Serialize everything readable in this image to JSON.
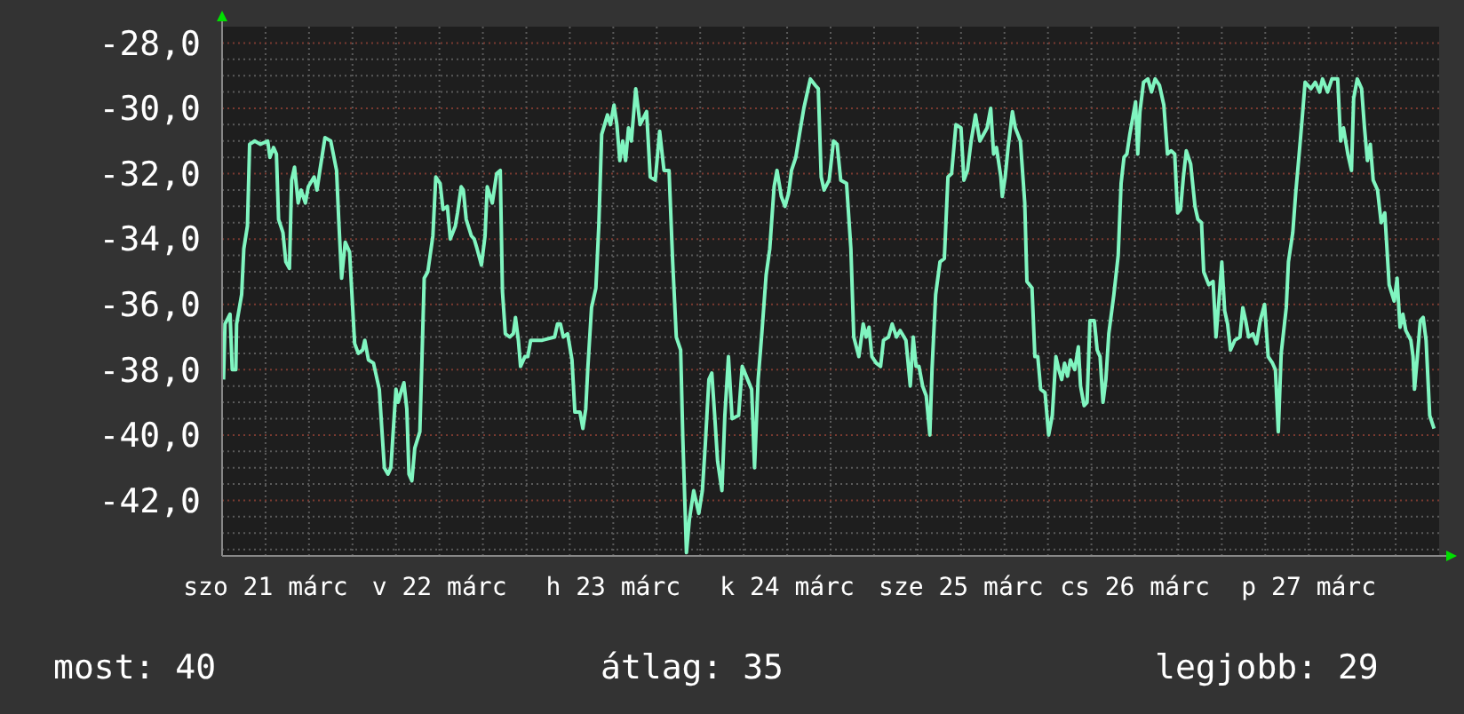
{
  "chart_data": {
    "type": "line",
    "xlim": [
      "--03-21T06:00",
      "--03-28T06:00"
    ],
    "ylim": [
      -43.7,
      -27.5
    ],
    "xticks": [
      {
        "value": "--03-21T06:00",
        "label": null
      },
      {
        "value": "--03-21T12:00",
        "label": "szo 21 márc"
      },
      {
        "value": "--03-21T18:00",
        "label": null
      },
      {
        "value": "--03-22T00:00",
        "label": null
      },
      {
        "value": "--03-22T06:00",
        "label": null
      },
      {
        "value": "--03-22T12:00",
        "label": "v 22 márc"
      },
      {
        "value": "--03-22T18:00",
        "label": null
      },
      {
        "value": "--03-23T00:00",
        "label": null
      },
      {
        "value": "--03-23T06:00",
        "label": null
      },
      {
        "value": "--03-23T12:00",
        "label": "h 23 márc"
      },
      {
        "value": "--03-23T18:00",
        "label": null
      },
      {
        "value": "--03-24T00:00",
        "label": null
      },
      {
        "value": "--03-24T06:00",
        "label": null
      },
      {
        "value": "--03-24T12:00",
        "label": "k 24 márc"
      },
      {
        "value": "--03-24T18:00",
        "label": null
      },
      {
        "value": "--03-25T00:00",
        "label": null
      },
      {
        "value": "--03-25T06:00",
        "label": null
      },
      {
        "value": "--03-25T12:00",
        "label": "sze 25 márc"
      },
      {
        "value": "--03-25T18:00",
        "label": null
      },
      {
        "value": "--03-26T00:00",
        "label": null
      },
      {
        "value": "--03-26T06:00",
        "label": null
      },
      {
        "value": "--03-26T12:00",
        "label": "cs 26 márc"
      },
      {
        "value": "--03-26T18:00",
        "label": null
      },
      {
        "value": "--03-27T00:00",
        "label": null
      },
      {
        "value": "--03-27T06:00",
        "label": null
      },
      {
        "value": "--03-27T12:00",
        "label": "p 27 márc"
      },
      {
        "value": "--03-27T18:00",
        "label": null
      },
      {
        "value": "--03-28T00:00",
        "label": null
      }
    ],
    "yticks": [
      {
        "value": -43.5,
        "label": null
      },
      {
        "value": -43,
        "label": null
      },
      {
        "value": -42.5,
        "label": null
      },
      {
        "value": -42,
        "label": "-42,0"
      },
      {
        "value": -41.5,
        "label": null
      },
      {
        "value": -41,
        "label": null
      },
      {
        "value": -40.5,
        "label": null
      },
      {
        "value": -40,
        "label": "-40,0"
      },
      {
        "value": -39.5,
        "label": null
      },
      {
        "value": -39,
        "label": null
      },
      {
        "value": -38.5,
        "label": null
      },
      {
        "value": -38,
        "label": "-38,0"
      },
      {
        "value": -37.5,
        "label": null
      },
      {
        "value": -37,
        "label": null
      },
      {
        "value": -36.5,
        "label": null
      },
      {
        "value": -36,
        "label": "-36,0"
      },
      {
        "value": -35.5,
        "label": null
      },
      {
        "value": -35,
        "label": null
      },
      {
        "value": -34.5,
        "label": null
      },
      {
        "value": -34,
        "label": "-34,0"
      },
      {
        "value": -33.5,
        "label": null
      },
      {
        "value": -33,
        "label": null
      },
      {
        "value": -32.5,
        "label": null
      },
      {
        "value": -32,
        "label": "-32,0"
      },
      {
        "value": -31.5,
        "label": null
      },
      {
        "value": -31,
        "label": null
      },
      {
        "value": -30.5,
        "label": null
      },
      {
        "value": -30,
        "label": "-30,0"
      },
      {
        "value": -29.5,
        "label": null
      },
      {
        "value": -29,
        "label": null
      },
      {
        "value": -28.5,
        "label": null
      },
      {
        "value": -28,
        "label": "-28,0"
      }
    ],
    "grid": true,
    "marker": "none",
    "line_style": "solid",
    "annotations": [
      "most: 40",
      "átlag: 35",
      "legjobb: 29"
    ],
    "series": [
      {
        "color": "#80f5c0",
        "x": [
          "--03-21T06:12",
          "--03-21T06:24",
          "--03-21T07:06",
          "--03-21T07:24",
          "--03-21T07:54",
          "--03-21T08:00",
          "--03-21T08:42",
          "--03-21T09:00",
          "--03-21T09:30",
          "--03-21T09:48",
          "--03-21T10:30",
          "--03-21T11:18",
          "--03-21T12:18",
          "--03-21T12:36",
          "--03-21T13:06",
          "--03-21T13:30",
          "--03-21T13:48",
          "--03-21T14:24",
          "--03-21T14:48",
          "--03-21T15:18",
          "--03-21T15:36",
          "--03-21T16:00",
          "--03-21T16:30",
          "--03-21T16:54",
          "--03-21T17:30",
          "--03-21T17:54",
          "--03-21T18:42",
          "--03-21T19:06",
          "--03-21T19:30",
          "--03-21T20:12",
          "--03-21T21:00",
          "--03-21T21:48",
          "--03-21T22:06",
          "--03-21T22:30",
          "--03-21T23:00",
          "--03-21T23:36",
          "--03-22T00:18",
          "--03-22T00:48",
          "--03-22T01:24",
          "--03-22T01:42",
          "--03-22T02:12",
          "--03-22T02:54",
          "--03-22T03:42",
          "--03-22T04:24",
          "--03-22T04:54",
          "--03-22T05:18",
          "--03-22T06:00",
          "--03-22T06:18",
          "--03-22T06:48",
          "--03-22T07:06",
          "--03-22T07:30",
          "--03-22T07:48",
          "--03-22T08:12",
          "--03-22T08:36",
          "--03-22T09:18",
          "--03-22T09:36",
          "--03-22T09:54",
          "--03-22T10:24",
          "--03-22T11:06",
          "--03-22T11:30",
          "--03-22T12:06",
          "--03-22T12:30",
          "--03-22T13:06",
          "--03-22T13:30",
          "--03-22T14:12",
          "--03-22T14:30",
          "--03-22T15:00",
          "--03-22T15:18",
          "--03-22T15:42",
          "--03-22T16:24",
          "--03-22T16:48",
          "--03-22T17:12",
          "--03-22T17:48",
          "--03-22T18:18",
          "--03-22T18:36",
          "--03-22T19:18",
          "--03-22T19:54",
          "--03-22T20:24",
          "--03-22T20:42",
          "--03-22T21:06",
          "--03-22T21:42",
          "--03-22T22:12",
          "--03-22T22:30",
          "--03-22T22:54",
          "--03-22T23:12",
          "--03-22T23:48",
          "--03-23T00:12",
          "--03-23T00:36",
          "--03-23T01:24",
          "--03-23T02:12",
          "--03-23T03:54",
          "--03-23T04:18",
          "--03-23T04:42",
          "--03-23T05:06",
          "--03-23T05:42",
          "--03-23T06:18",
          "--03-23T06:42",
          "--03-23T07:24",
          "--03-23T07:48",
          "--03-23T08:12",
          "--03-23T08:30",
          "--03-23T09:00",
          "--03-23T09:36",
          "--03-23T10:00",
          "--03-23T10:24",
          "--03-23T11:12",
          "--03-23T11:36",
          "--03-23T12:06",
          "--03-23T12:30",
          "--03-23T12:54",
          "--03-23T13:18",
          "--03-23T13:42",
          "--03-23T14:06",
          "--03-23T14:30",
          "--03-23T15:06",
          "--03-23T15:42",
          "--03-23T16:36",
          "--03-23T17:06",
          "--03-23T17:48",
          "--03-23T18:24",
          "--03-23T19:00",
          "--03-23T19:42",
          "--03-23T20:12",
          "--03-23T20:42",
          "--03-23T21:18",
          "--03-23T21:36",
          "--03-23T22:06",
          "--03-23T22:30",
          "--03-23T23:06",
          "--03-23T23:48",
          "--03-24T00:18",
          "--03-24T00:42",
          "--03-24T01:12",
          "--03-24T01:36",
          "--03-24T02:00",
          "--03-24T02:24",
          "--03-24T03:00",
          "--03-24T03:24",
          "--03-24T03:54",
          "--03-24T04:24",
          "--03-24T05:18",
          "--03-24T05:48",
          "--03-24T07:06",
          "--03-24T07:30",
          "--03-24T08:00",
          "--03-24T08:30",
          "--03-24T09:06",
          "--03-24T09:36",
          "--03-24T10:12",
          "--03-24T10:36",
          "--03-24T11:12",
          "--03-24T11:42",
          "--03-24T12:12",
          "--03-24T12:36",
          "--03-24T13:12",
          "--03-24T13:42",
          "--03-24T14:18",
          "--03-24T14:42",
          "--03-24T15:12",
          "--03-24T15:54",
          "--03-24T16:18",
          "--03-24T16:42",
          "--03-24T17:06",
          "--03-24T17:48",
          "--03-24T18:24",
          "--03-24T18:54",
          "--03-24T19:24",
          "--03-24T20:12",
          "--03-24T20:48",
          "--03-24T21:12",
          "--03-24T21:54",
          "--03-24T22:30",
          "--03-24T22:54",
          "--03-24T23:18",
          "--03-24T23:42",
          "--03-25T00:18",
          "--03-25T00:54",
          "--03-25T01:18",
          "--03-25T02:00",
          "--03-25T02:30",
          "--03-25T03:06",
          "--03-25T03:36",
          "--03-25T04:24",
          "--03-25T05:00",
          "--03-25T05:24",
          "--03-25T05:48",
          "--03-25T06:12",
          "--03-25T06:42",
          "--03-25T07:12",
          "--03-25T07:42",
          "--03-25T08:00",
          "--03-25T08:30",
          "--03-25T09:06",
          "--03-25T09:42",
          "--03-25T10:12",
          "--03-25T10:42",
          "--03-25T11:18",
          "--03-25T12:00",
          "--03-25T12:24",
          "--03-25T12:54",
          "--03-25T13:24",
          "--03-25T14:00",
          "--03-25T14:36",
          "--03-25T15:06",
          "--03-25T15:36",
          "--03-25T16:06",
          "--03-25T16:30",
          "--03-25T16:54",
          "--03-25T17:30",
          "--03-25T17:42",
          "--03-25T18:06",
          "--03-25T18:30",
          "--03-25T19:06",
          "--03-25T19:30",
          "--03-25T20:12",
          "--03-25T20:48",
          "--03-25T21:06",
          "--03-25T21:48",
          "--03-25T22:12",
          "--03-25T22:36",
          "--03-25T23:00",
          "--03-25T23:36",
          "--03-26T00:06",
          "--03-26T00:36",
          "--03-26T01:06",
          "--03-26T01:30",
          "--03-26T01:54",
          "--03-26T02:18",
          "--03-26T02:42",
          "--03-26T03:06",
          "--03-26T03:42",
          "--03-26T04:12",
          "--03-26T04:30",
          "--03-26T05:00",
          "--03-26T05:24",
          "--03-26T05:48",
          "--03-26T06:24",
          "--03-26T06:48",
          "--03-26T07:12",
          "--03-26T07:36",
          "--03-26T08:00",
          "--03-26T08:24",
          "--03-26T09:06",
          "--03-26T09:42",
          "--03-26T10:06",
          "--03-26T10:30",
          "--03-26T10:54",
          "--03-26T11:18",
          "--03-26T11:42",
          "--03-26T12:06",
          "--03-26T12:24",
          "--03-26T12:42",
          "--03-26T13:12",
          "--03-26T13:48",
          "--03-26T14:18",
          "--03-26T14:48",
          "--03-26T15:24",
          "--03-26T16:00",
          "--03-26T16:30",
          "--03-26T17:00",
          "--03-26T17:30",
          "--03-26T17:54",
          "--03-26T18:18",
          "--03-26T18:42",
          "--03-26T19:06",
          "--03-26T19:42",
          "--03-26T20:18",
          "--03-26T20:42",
          "--03-26T21:12",
          "--03-26T21:30",
          "--03-26T22:12",
          "--03-26T22:48",
          "--03-26T23:12",
          "--03-26T23:36",
          "--03-27T00:00",
          "--03-27T00:24",
          "--03-27T00:48",
          "--03-27T01:12",
          "--03-27T01:48",
          "--03-27T02:30",
          "--03-27T02:54",
          "--03-27T03:18",
          "--03-27T03:42",
          "--03-27T04:18",
          "--03-27T04:48",
          "--03-27T05:18",
          "--03-27T05:54",
          "--03-27T06:24",
          "--03-27T07:00",
          "--03-27T07:24",
          "--03-27T07:48",
          "--03-27T08:12",
          "--03-27T08:54",
          "--03-27T09:12",
          "--03-27T09:48",
          "--03-27T10:12",
          "--03-27T10:36",
          "--03-27T11:06",
          "--03-27T11:30",
          "--03-27T12:18",
          "--03-27T12:54",
          "--03-27T13:30",
          "--03-27T13:54",
          "--03-27T14:36",
          "--03-27T15:12",
          "--03-27T16:00",
          "--03-27T16:24",
          "--03-27T16:48",
          "--03-27T17:24",
          "--03-27T17:54",
          "--03-27T18:12",
          "--03-27T18:42",
          "--03-27T19:18",
          "--03-27T19:42",
          "--03-27T20:06",
          "--03-27T20:30",
          "--03-27T20:54",
          "--03-27T21:30",
          "--03-27T22:00",
          "--03-27T22:30",
          "--03-27T23:06",
          "--03-27T23:48",
          "--03-28T00:12",
          "--03-28T00:36",
          "--03-28T01:00",
          "--03-28T01:24",
          "--03-28T02:06",
          "--03-28T02:24",
          "--03-28T02:36",
          "--03-28T03:00",
          "--03-28T03:24",
          "--03-28T03:48",
          "--03-28T04:12",
          "--03-28T04:42",
          "--03-28T05:18"
        ],
        "values": [
          -38.3,
          -36.6,
          -36.3,
          -38.0,
          -38.0,
          -36.6,
          -35.7,
          -34.3,
          -33.6,
          -31.1,
          -31.0,
          -31.1,
          -31.0,
          -31.5,
          -31.2,
          -31.4,
          -33.4,
          -33.8,
          -34.7,
          -34.9,
          -32.2,
          -31.8,
          -32.9,
          -32.5,
          -32.9,
          -32.4,
          -32.1,
          -32.5,
          -31.9,
          -30.9,
          -31.0,
          -31.9,
          -33.4,
          -35.2,
          -34.1,
          -34.4,
          -37.2,
          -37.5,
          -37.4,
          -37.1,
          -37.7,
          -37.8,
          -38.6,
          -41.0,
          -41.2,
          -41.0,
          -38.6,
          -39.0,
          -38.6,
          -38.4,
          -39.2,
          -41.2,
          -41.4,
          -40.4,
          -39.9,
          -37.6,
          -35.2,
          -35.0,
          -33.9,
          -32.1,
          -32.3,
          -33.1,
          -33.0,
          -34.0,
          -33.6,
          -33.2,
          -32.4,
          -32.5,
          -33.4,
          -33.9,
          -34.0,
          -34.3,
          -34.8,
          -33.9,
          -32.4,
          -32.9,
          -32.0,
          -31.9,
          -35.6,
          -36.9,
          -37.0,
          -36.9,
          -36.4,
          -37.1,
          -37.9,
          -37.6,
          -37.6,
          -37.1,
          -37.1,
          -37.1,
          -37.0,
          -36.6,
          -36.6,
          -37.0,
          -36.9,
          -37.7,
          -39.3,
          -39.3,
          -39.8,
          -39.2,
          -37.9,
          -36.1,
          -35.5,
          -33.6,
          -30.8,
          -30.2,
          -30.5,
          -29.9,
          -30.5,
          -31.6,
          -31.0,
          -31.6,
          -30.6,
          -31.0,
          -29.4,
          -30.5,
          -30.1,
          -32.1,
          -32.2,
          -30.7,
          -31.9,
          -31.9,
          -34.7,
          -37.0,
          -37.4,
          -40.1,
          -43.6,
          -42.6,
          -41.7,
          -42.4,
          -41.7,
          -40.3,
          -38.3,
          -38.1,
          -39.4,
          -40.8,
          -41.7,
          -39.4,
          -37.6,
          -39.5,
          -39.4,
          -37.9,
          -38.6,
          -41.0,
          -38.3,
          -36.9,
          -35.1,
          -34.3,
          -32.4,
          -31.9,
          -32.7,
          -33.0,
          -32.6,
          -31.9,
          -31.5,
          -30.8,
          -30.0,
          -29.6,
          -29.1,
          -29.3,
          -29.4,
          -32.1,
          -32.5,
          -32.2,
          -31.0,
          -31.1,
          -32.2,
          -32.3,
          -34.3,
          -37.0,
          -37.6,
          -36.6,
          -37.0,
          -36.7,
          -37.6,
          -37.8,
          -37.9,
          -37.1,
          -37.0,
          -36.6,
          -37.0,
          -36.8,
          -37.1,
          -38.5,
          -37.0,
          -37.9,
          -37.9,
          -38.5,
          -38.8,
          -40.0,
          -38.0,
          -35.7,
          -34.7,
          -34.6,
          -32.1,
          -32.0,
          -30.5,
          -30.6,
          -32.2,
          -31.9,
          -31.0,
          -30.2,
          -31.0,
          -30.8,
          -30.6,
          -30.0,
          -31.4,
          -31.2,
          -32.1,
          -32.7,
          -32.1,
          -31.2,
          -30.1,
          -30.6,
          -31.0,
          -32.9,
          -35.3,
          -35.5,
          -37.6,
          -37.6,
          -38.6,
          -38.7,
          -40.0,
          -39.4,
          -37.6,
          -38.0,
          -38.3,
          -37.8,
          -38.2,
          -37.7,
          -38.0,
          -37.3,
          -38.5,
          -39.1,
          -39.0,
          -36.5,
          -36.5,
          -37.4,
          -37.6,
          -39.0,
          -38.3,
          -36.9,
          -35.7,
          -34.5,
          -32.3,
          -31.5,
          -31.4,
          -30.8,
          -30.3,
          -29.8,
          -31.4,
          -30.1,
          -29.2,
          -29.1,
          -29.5,
          -29.1,
          -29.3,
          -29.9,
          -31.4,
          -31.3,
          -31.4,
          -33.2,
          -33.1,
          -32.1,
          -31.3,
          -31.7,
          -33.0,
          -33.4,
          -33.5,
          -35.0,
          -35.4,
          -35.3,
          -37.0,
          -35.9,
          -34.7,
          -36.2,
          -36.6,
          -37.4,
          -37.1,
          -37.0,
          -36.1,
          -36.5,
          -37.0,
          -36.9,
          -37.2,
          -36.5,
          -36.0,
          -37.6,
          -37.8,
          -38.0,
          -39.9,
          -37.5,
          -36.1,
          -34.7,
          -33.8,
          -32.6,
          -31.6,
          -30.3,
          -29.2,
          -29.4,
          -29.2,
          -29.5,
          -29.1,
          -29.5,
          -29.1,
          -29.1,
          -31.0,
          -30.6,
          -31.4,
          -31.9,
          -29.7,
          -29.1,
          -29.4,
          -30.6,
          -31.6,
          -31.1,
          -32.2,
          -32.5,
          -33.5,
          -33.2,
          -35.4,
          -35.9,
          -35.2,
          -36.7,
          -36.3,
          -36.8,
          -37.1,
          -37.6,
          -38.6,
          -37.6,
          -36.5,
          -36.4,
          -37.1,
          -39.4,
          -39.8
        ]
      }
    ]
  }
}
